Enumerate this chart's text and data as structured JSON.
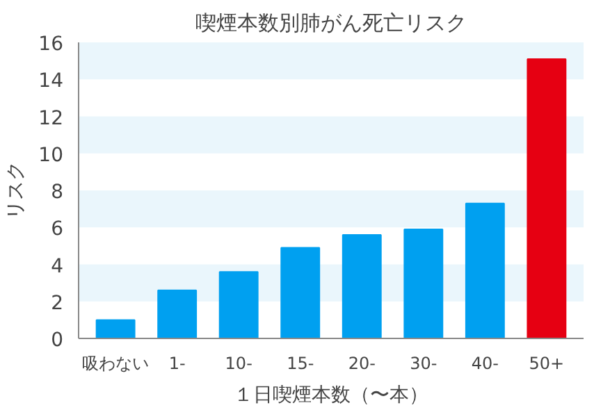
{
  "chart_data": {
    "type": "bar",
    "title": "喫煙本数別肺がん死亡リスク",
    "xlabel": "１日喫煙本数（〜本）",
    "ylabel": "リスク",
    "categories": [
      "吸わない",
      "1-",
      "10-",
      "15-",
      "20-",
      "30-",
      "40-",
      "50+"
    ],
    "values": [
      1.0,
      2.6,
      3.6,
      4.9,
      5.6,
      5.9,
      7.3,
      15.1
    ],
    "colors": [
      "#00a0f0",
      "#00a0f0",
      "#00a0f0",
      "#00a0f0",
      "#00a0f0",
      "#00a0f0",
      "#00a0f0",
      "#e60012"
    ],
    "ylim": [
      0,
      16
    ],
    "yticks": [
      0,
      2,
      4,
      6,
      8,
      10,
      12,
      14,
      16
    ],
    "grid": false,
    "bands": [
      {
        "axis": "y",
        "from": 2,
        "to": 4,
        "color": "#eaf6fc"
      },
      {
        "axis": "y",
        "from": 6,
        "to": 8,
        "color": "#eaf6fc"
      },
      {
        "axis": "y",
        "from": 10,
        "to": 12,
        "color": "#eaf6fc"
      },
      {
        "axis": "y",
        "from": 14,
        "to": 16,
        "color": "#eaf6fc"
      }
    ]
  }
}
